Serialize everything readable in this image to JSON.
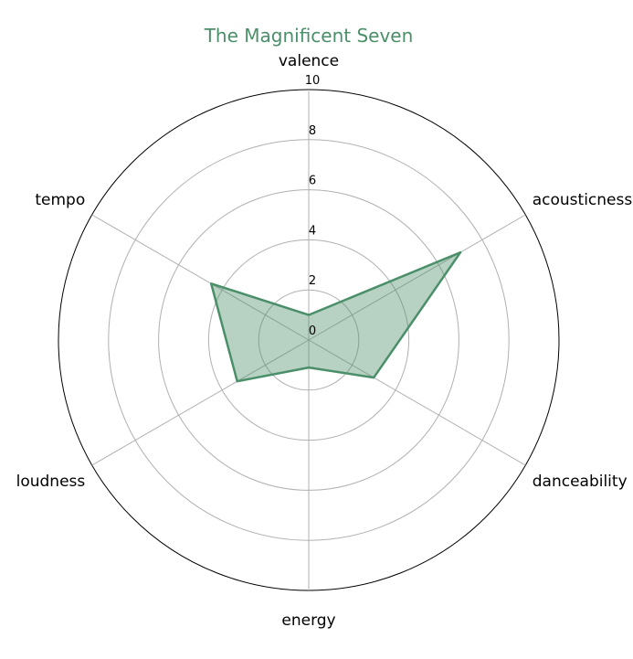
{
  "chart_data": {
    "type": "radar",
    "title": "The Magnificent Seven",
    "categories": [
      "valence",
      "acousticness",
      "danceability",
      "energy",
      "loudness",
      "tempo"
    ],
    "series": [
      {
        "values": [
          1.0,
          7.0,
          3.0,
          1.1,
          3.3,
          4.5
        ]
      }
    ],
    "rlim": [
      0,
      10
    ],
    "rticks": [
      0,
      2,
      4,
      6,
      8,
      10
    ],
    "grid": true,
    "colors": {
      "series": "#4a8f69",
      "fill": "#4a8f69",
      "grid": "#b0b0b0",
      "title": "#4a8f69"
    }
  }
}
